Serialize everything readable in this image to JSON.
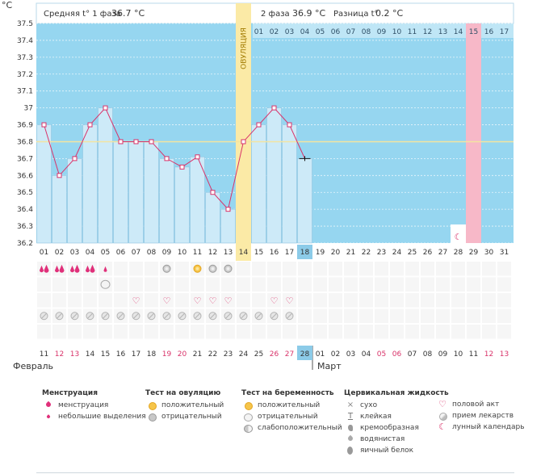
{
  "header": {
    "unit": "°C",
    "phase1_label": "Средняя t° 1 фаза",
    "phase1_value": "36.7 °C",
    "phase2_label": "2 фаза",
    "phase2_value": "36.9 °C",
    "diff_label": "Разница t°",
    "diff_value": "0.2 °C",
    "ovulation_label": "ОВУЛЯЦИЯ"
  },
  "colors": {
    "sky": "#96d6f0",
    "bar": "#cdeaf8",
    "bar_border": "#8fc4e0",
    "line": "#d9336a",
    "ovulation": "#fbeaa6",
    "period_day": "#f7b8c8",
    "coverline": "#f3e4a0",
    "weekend": "#d9336a",
    "selected": "#8ccbe8"
  },
  "chart_data": {
    "type": "bar",
    "title": "",
    "ylabel": "°C",
    "ylim": [
      36.2,
      37.5
    ],
    "y_ticks": [
      "36.2",
      "36.3",
      "36.4",
      "36.5",
      "36.6",
      "36.7",
      "36.8",
      "36.9",
      "37",
      "37.1",
      "37.2",
      "37.3",
      "37.4",
      "37.5"
    ],
    "cycle_days": [
      "01",
      "02",
      "03",
      "04",
      "05",
      "06",
      "07",
      "08",
      "09",
      "10",
      "11",
      "12",
      "13",
      "14",
      "15",
      "16",
      "17",
      "18",
      "19",
      "20",
      "21",
      "22",
      "23",
      "24",
      "25",
      "26",
      "27",
      "28",
      "29",
      "30",
      "31"
    ],
    "post_ovulation_days": [
      "01",
      "02",
      "03",
      "04",
      "05",
      "06",
      "07",
      "08",
      "09",
      "10",
      "11",
      "12",
      "13",
      "14",
      "15",
      "16",
      "17"
    ],
    "temperatures": [
      36.9,
      36.6,
      36.7,
      36.9,
      37.0,
      36.8,
      36.8,
      36.8,
      36.7,
      36.65,
      36.71,
      36.5,
      36.4,
      36.8,
      36.9,
      37.0,
      36.9,
      36.7
    ],
    "coverline": 36.8,
    "ovulation_day": 14,
    "current_day": 18,
    "period_expected_day": 29,
    "lunar_day": 28,
    "calendar_days": [
      "11",
      "12",
      "13",
      "14",
      "15",
      "16",
      "17",
      "18",
      "19",
      "20",
      "21",
      "22",
      "23",
      "24",
      "25",
      "26",
      "27",
      "28",
      "01",
      "02",
      "03",
      "04",
      "05",
      "06",
      "07",
      "08",
      "09",
      "10",
      "11",
      "12",
      "13"
    ],
    "weekend_columns": [
      2,
      3,
      9,
      10,
      16,
      17,
      23,
      24,
      30,
      31
    ],
    "month_start": "Февраль",
    "month_next": "Март",
    "rows": {
      "menstruation": [
        [
          "large",
          1
        ],
        [
          "large",
          2
        ],
        [
          "large",
          3
        ],
        [
          "large",
          4
        ],
        [
          "small",
          5
        ]
      ],
      "ovulation_tests": [
        [
          "negative",
          9
        ],
        [
          "positive",
          11
        ],
        [
          "negative",
          12
        ],
        [
          "negative",
          13
        ]
      ],
      "pregnancy_tests": [
        [
          "negative",
          5
        ]
      ],
      "intercourse": [
        7,
        9,
        11,
        12,
        13,
        16,
        17
      ],
      "medication": [
        1,
        2,
        3,
        4,
        5,
        6,
        7,
        8,
        9,
        10,
        11,
        12,
        13,
        14,
        15,
        16,
        17
      ]
    }
  },
  "legend": {
    "menstruation": {
      "title": "Менструация",
      "items": [
        "менструация",
        "небольшие выделения"
      ]
    },
    "ovulation_test": {
      "title": "Тест на овуляцию",
      "items": [
        "положительный",
        "отрицательный"
      ]
    },
    "pregnancy_test": {
      "title": "Тест на беременность",
      "items": [
        "положительный",
        "отрицательный",
        "слабоположительный"
      ]
    },
    "cervical": {
      "title": "Цервикальная жидкость",
      "items": [
        "сухо",
        "клейкая",
        "кремообразная",
        "водянистая",
        "яичный белок"
      ]
    },
    "other": {
      "items": [
        "половой акт",
        "прием лекарств",
        "лунный календарь"
      ]
    }
  }
}
